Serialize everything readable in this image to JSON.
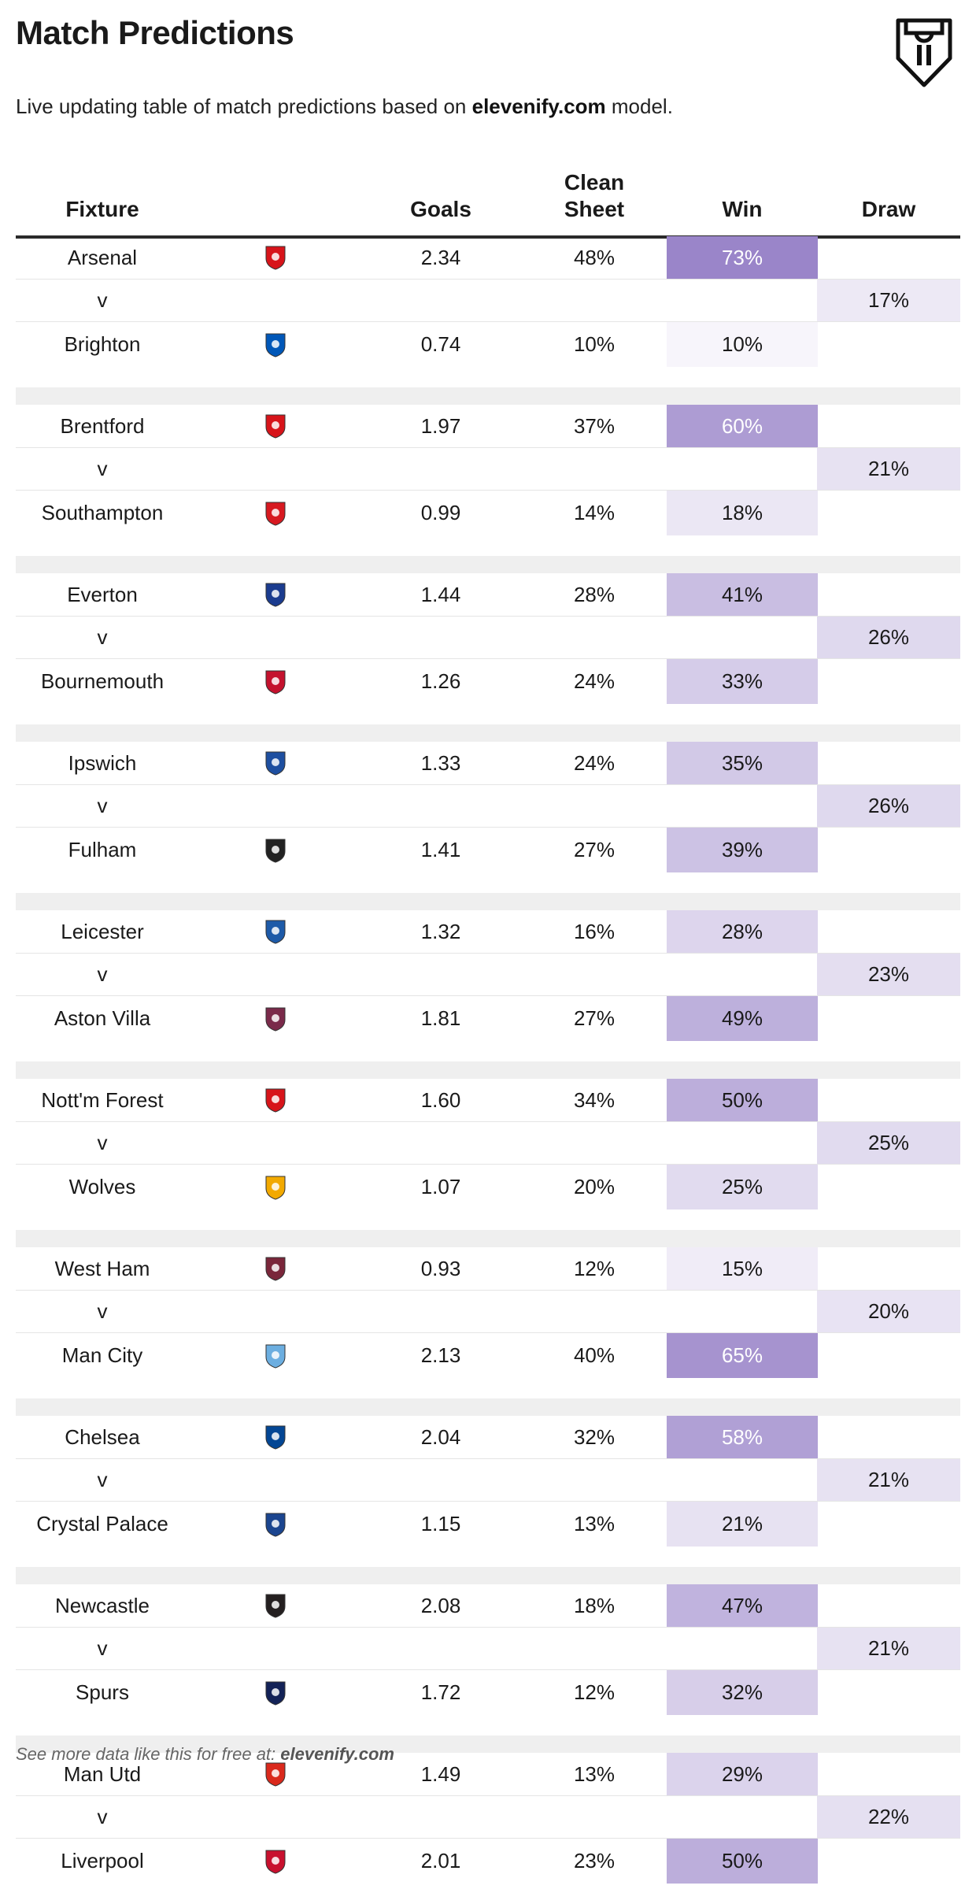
{
  "title": "Match Predictions",
  "subtitle": {
    "prefix": "Live updating table of match predictions based on ",
    "brand": "elevenify.com",
    "suffix": " model."
  },
  "columns": {
    "fixture": "Fixture",
    "goals": "Goals",
    "clean_sheet": "Clean Sheet",
    "win": "Win",
    "draw": "Draw"
  },
  "accent_color": "#9a85c9",
  "versus_label": "v",
  "fixtures": [
    {
      "home": {
        "team": "Arsenal",
        "crest_color": "#d7141a",
        "goals": "2.34",
        "clean_sheet": "48%",
        "win": "73%",
        "win_value": 73
      },
      "draw": "17%",
      "draw_value": 17,
      "away": {
        "team": "Brighton",
        "crest_color": "#0057b8",
        "goals": "0.74",
        "clean_sheet": "10%",
        "win": "10%",
        "win_value": 10
      }
    },
    {
      "home": {
        "team": "Brentford",
        "crest_color": "#d7141a",
        "goals": "1.97",
        "clean_sheet": "37%",
        "win": "60%",
        "win_value": 60
      },
      "draw": "21%",
      "draw_value": 21,
      "away": {
        "team": "Southampton",
        "crest_color": "#d71920",
        "goals": "0.99",
        "clean_sheet": "14%",
        "win": "18%",
        "win_value": 18
      }
    },
    {
      "home": {
        "team": "Everton",
        "crest_color": "#1b3c8f",
        "goals": "1.44",
        "clean_sheet": "28%",
        "win": "41%",
        "win_value": 41
      },
      "draw": "26%",
      "draw_value": 26,
      "away": {
        "team": "Bournemouth",
        "crest_color": "#c4122e",
        "goals": "1.26",
        "clean_sheet": "24%",
        "win": "33%",
        "win_value": 33
      }
    },
    {
      "home": {
        "team": "Ipswich",
        "crest_color": "#1e4fa0",
        "goals": "1.33",
        "clean_sheet": "24%",
        "win": "35%",
        "win_value": 35
      },
      "draw": "26%",
      "draw_value": 26,
      "away": {
        "team": "Fulham",
        "crest_color": "#222222",
        "goals": "1.41",
        "clean_sheet": "27%",
        "win": "39%",
        "win_value": 39
      }
    },
    {
      "home": {
        "team": "Leicester",
        "crest_color": "#1d5aa8",
        "goals": "1.32",
        "clean_sheet": "16%",
        "win": "28%",
        "win_value": 28
      },
      "draw": "23%",
      "draw_value": 23,
      "away": {
        "team": "Aston Villa",
        "crest_color": "#7a2a4a",
        "goals": "1.81",
        "clean_sheet": "27%",
        "win": "49%",
        "win_value": 49
      }
    },
    {
      "home": {
        "team": "Nott'm Forest",
        "crest_color": "#d7141a",
        "goals": "1.60",
        "clean_sheet": "34%",
        "win": "50%",
        "win_value": 50
      },
      "draw": "25%",
      "draw_value": 25,
      "away": {
        "team": "Wolves",
        "crest_color": "#f2a900",
        "goals": "1.07",
        "clean_sheet": "20%",
        "win": "25%",
        "win_value": 25
      }
    },
    {
      "home": {
        "team": "West Ham",
        "crest_color": "#7a263a",
        "goals": "0.93",
        "clean_sheet": "12%",
        "win": "15%",
        "win_value": 15
      },
      "draw": "20%",
      "draw_value": 20,
      "away": {
        "team": "Man City",
        "crest_color": "#6caee0",
        "goals": "2.13",
        "clean_sheet": "40%",
        "win": "65%",
        "win_value": 65
      }
    },
    {
      "home": {
        "team": "Chelsea",
        "crest_color": "#034694",
        "goals": "2.04",
        "clean_sheet": "32%",
        "win": "58%",
        "win_value": 58
      },
      "draw": "21%",
      "draw_value": 21,
      "away": {
        "team": "Crystal Palace",
        "crest_color": "#1b458f",
        "goals": "1.15",
        "clean_sheet": "13%",
        "win": "21%",
        "win_value": 21
      }
    },
    {
      "home": {
        "team": "Newcastle",
        "crest_color": "#241f20",
        "goals": "2.08",
        "clean_sheet": "18%",
        "win": "47%",
        "win_value": 47
      },
      "draw": "21%",
      "draw_value": 21,
      "away": {
        "team": "Spurs",
        "crest_color": "#132257",
        "goals": "1.72",
        "clean_sheet": "12%",
        "win": "32%",
        "win_value": 32
      }
    },
    {
      "home": {
        "team": "Man Utd",
        "crest_color": "#da291c",
        "goals": "1.49",
        "clean_sheet": "13%",
        "win": "29%",
        "win_value": 29
      },
      "draw": "22%",
      "draw_value": 22,
      "away": {
        "team": "Liverpool",
        "crest_color": "#c8102e",
        "goals": "2.01",
        "clean_sheet": "23%",
        "win": "50%",
        "win_value": 50
      }
    }
  ],
  "footer": {
    "prefix": "See more data like this for free at: ",
    "brand": "elevenify.com"
  }
}
